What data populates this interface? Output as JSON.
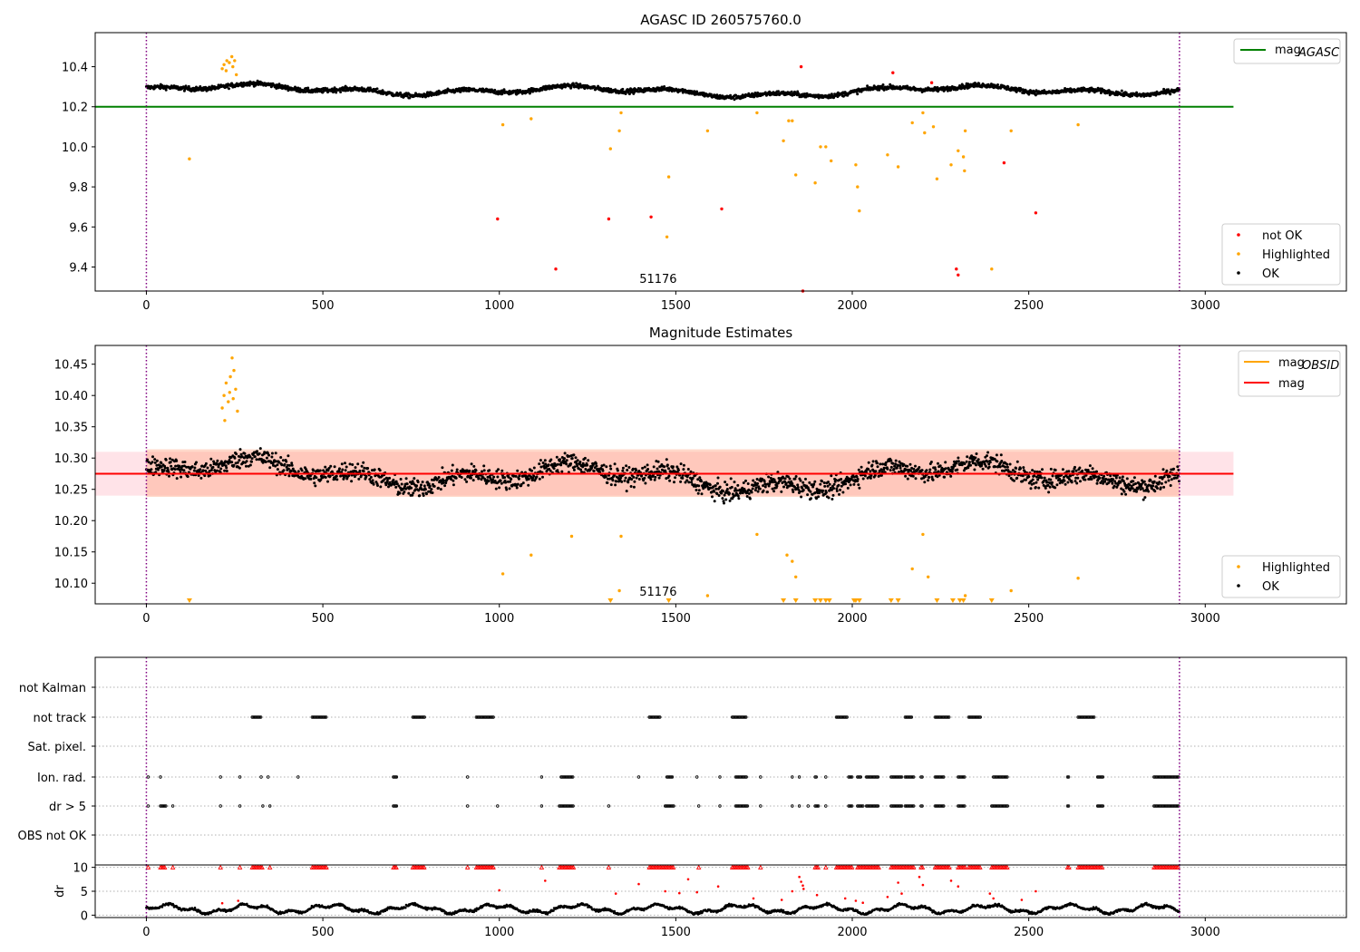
{
  "chart_data": [
    {
      "panel": "top",
      "type": "scatter",
      "title": "AGASC ID 260575760.0",
      "xlim": [
        -145,
        3400
      ],
      "ylim": [
        9.28,
        10.57
      ],
      "x_ticks": [
        0,
        500,
        1000,
        1500,
        2000,
        2500,
        3000
      ],
      "y_ticks": [
        9.4,
        9.6,
        9.8,
        10.0,
        10.2,
        10.4
      ],
      "y_tick_labels": [
        "9.4",
        "9.6",
        "9.8",
        "10.0",
        "10.2",
        "10.4"
      ],
      "annotation": "51176",
      "annotation_x": 1450,
      "vlines": [
        0,
        2927
      ],
      "vline_color": "#800080",
      "hline": {
        "name": "mag",
        "subscript": "AGASC",
        "y": 10.2,
        "x": [
          -145,
          3080
        ],
        "color": "#008000"
      },
      "legend_upper": [
        {
          "name": "mag",
          "subscript": "AGASC",
          "color": "#008000",
          "kind": "line"
        }
      ],
      "legend_lower": [
        {
          "name": "not OK",
          "color": "#ff0000",
          "kind": "dot"
        },
        {
          "name": "Highlighted",
          "color": "#ffa500",
          "kind": "dot"
        },
        {
          "name": "OK",
          "color": "#000000",
          "kind": "dot"
        }
      ],
      "ok_band": {
        "x": [
          0,
          2927
        ],
        "center": 10.28,
        "amplitude": 0.03,
        "noise": 0.022
      },
      "highlighted_points": [
        [
          122,
          9.94
        ],
        [
          1010,
          10.11
        ],
        [
          1090,
          10.14
        ],
        [
          1315,
          9.99
        ],
        [
          1345,
          10.17
        ],
        [
          1340,
          10.08
        ],
        [
          1480,
          9.85
        ],
        [
          1475,
          9.55
        ],
        [
          1590,
          10.08
        ],
        [
          1730,
          10.17
        ],
        [
          1805,
          10.03
        ],
        [
          1820,
          10.13
        ],
        [
          1830,
          10.13
        ],
        [
          1840,
          9.86
        ],
        [
          1895,
          9.82
        ],
        [
          1910,
          10.0
        ],
        [
          1925,
          10.0
        ],
        [
          1940,
          9.93
        ],
        [
          2010,
          9.91
        ],
        [
          2015,
          9.8
        ],
        [
          2020,
          9.68
        ],
        [
          2100,
          9.96
        ],
        [
          2130,
          9.9
        ],
        [
          2170,
          10.12
        ],
        [
          2200,
          10.17
        ],
        [
          2205,
          10.07
        ],
        [
          2230,
          10.1
        ],
        [
          2240,
          9.84
        ],
        [
          2280,
          9.91
        ],
        [
          2300,
          9.98
        ],
        [
          2315,
          9.95
        ],
        [
          2320,
          10.08
        ],
        [
          2318,
          9.88
        ],
        [
          2450,
          10.08
        ],
        [
          2395,
          9.39
        ],
        [
          2640,
          10.11
        ],
        [
          215,
          10.39
        ],
        [
          220,
          10.41
        ],
        [
          228,
          10.43
        ],
        [
          235,
          10.42
        ],
        [
          242,
          10.45
        ],
        [
          250,
          10.43
        ],
        [
          226,
          10.38
        ],
        [
          245,
          10.4
        ],
        [
          255,
          10.36
        ]
      ],
      "notok_points": [
        [
          995,
          9.64
        ],
        [
          1160,
          9.39
        ],
        [
          1310,
          9.64
        ],
        [
          1430,
          9.65
        ],
        [
          1630,
          9.69
        ],
        [
          1855,
          10.4
        ],
        [
          2115,
          10.37
        ],
        [
          2225,
          10.32
        ],
        [
          2295,
          9.39
        ],
        [
          2300,
          9.36
        ],
        [
          2430,
          9.92
        ],
        [
          2520,
          9.67
        ],
        [
          1860,
          9.28
        ]
      ]
    },
    {
      "panel": "middle",
      "type": "scatter",
      "title": "Magnitude Estimates",
      "xlim": [
        -145,
        3400
      ],
      "ylim": [
        10.067,
        10.48
      ],
      "x_ticks": [
        0,
        500,
        1000,
        1500,
        2000,
        2500,
        3000
      ],
      "y_ticks": [
        10.1,
        10.15,
        10.2,
        10.25,
        10.3,
        10.35,
        10.4,
        10.45
      ],
      "y_tick_labels": [
        "10.10",
        "10.15",
        "10.20",
        "10.25",
        "10.30",
        "10.35",
        "10.40",
        "10.45"
      ],
      "annotation": "51176",
      "annotation_x": 1450,
      "vlines": [
        0,
        2927
      ],
      "mag_line": {
        "name": "mag",
        "y": 10.275,
        "x": [
          -145,
          3080
        ],
        "color": "#ff0000"
      },
      "band_outer": {
        "y": [
          10.24,
          10.31
        ],
        "x": [
          -145,
          3080
        ],
        "color": "#ffc0cb"
      },
      "band_inner": {
        "y": [
          10.238,
          10.314
        ],
        "x": [
          0,
          2927
        ],
        "color": "#ffa07a"
      },
      "legend_upper": [
        {
          "name": "mag",
          "subscript": "OBSID",
          "color": "#ffa500",
          "kind": "line"
        },
        {
          "name": "mag",
          "color": "#ff0000",
          "kind": "line"
        }
      ],
      "legend_lower": [
        {
          "name": "Highlighted",
          "color": "#ffa500",
          "kind": "dot"
        },
        {
          "name": "OK",
          "color": "#000000",
          "kind": "dot"
        }
      ],
      "ok_band": {
        "x": [
          0,
          2927
        ],
        "center": 10.272,
        "amplitude": 0.025,
        "noise": 0.03
      },
      "highlighted_points": [
        [
          1010,
          10.115
        ],
        [
          1090,
          10.145
        ],
        [
          1205,
          10.175
        ],
        [
          1345,
          10.175
        ],
        [
          1340,
          10.088
        ],
        [
          1590,
          10.08
        ],
        [
          1730,
          10.178
        ],
        [
          1815,
          10.145
        ],
        [
          1830,
          10.135
        ],
        [
          1840,
          10.11
        ],
        [
          2170,
          10.123
        ],
        [
          2200,
          10.178
        ],
        [
          2215,
          10.11
        ],
        [
          2320,
          10.08
        ],
        [
          2450,
          10.088
        ],
        [
          2640,
          10.108
        ],
        [
          215,
          10.38
        ],
        [
          220,
          10.4
        ],
        [
          226,
          10.42
        ],
        [
          232,
          10.39
        ],
        [
          238,
          10.43
        ],
        [
          243,
          10.46
        ],
        [
          248,
          10.44
        ],
        [
          253,
          10.41
        ],
        [
          258,
          10.375
        ],
        [
          222,
          10.36
        ],
        [
          236,
          10.405
        ],
        [
          246,
          10.395
        ]
      ],
      "clipped_markers_x": [
        122,
        1315,
        1480,
        1805,
        1840,
        1895,
        1910,
        1925,
        1935,
        2005,
        2010,
        2020,
        2110,
        2130,
        2240,
        2285,
        2305,
        2315,
        2395
      ]
    },
    {
      "panel": "flags",
      "type": "scatter",
      "xlim": [
        -145,
        3400
      ],
      "x_ticks": [
        0,
        500,
        1000,
        1500,
        2000,
        2500,
        3000
      ],
      "vlines": [
        0,
        2927
      ],
      "categories": [
        "not Kalman",
        "not track",
        "Sat. pixel.",
        "Ion. rad.",
        "dr > 5",
        "OBS not OK"
      ],
      "flag_points": {
        "not track": [
          [
            300,
            325
          ],
          [
            470,
            510
          ],
          [
            755,
            790
          ],
          [
            935,
            985
          ],
          [
            1425,
            1455
          ],
          [
            1660,
            1700
          ],
          [
            1955,
            1985
          ],
          [
            2150,
            2170
          ],
          [
            2235,
            2275
          ],
          [
            2330,
            2365
          ],
          [
            2640,
            2685
          ]
        ],
        "Ion. rad.": [
          [
            5,
            5
          ],
          [
            40,
            40
          ],
          [
            210,
            210
          ],
          [
            265,
            265
          ],
          [
            325,
            325
          ],
          [
            345,
            345
          ],
          [
            430,
            430
          ],
          [
            700,
            710
          ],
          [
            910,
            910
          ],
          [
            1120,
            1120
          ],
          [
            1175,
            1210
          ],
          [
            1395,
            1395
          ],
          [
            1475,
            1490
          ],
          [
            1560,
            1560
          ],
          [
            1625,
            1625
          ],
          [
            1670,
            1700
          ],
          [
            1740,
            1740
          ],
          [
            1830,
            1830
          ],
          [
            1850,
            1850
          ],
          [
            1895,
            1900
          ],
          [
            1925,
            1925
          ],
          [
            1990,
            2000
          ],
          [
            2015,
            2025
          ],
          [
            2040,
            2075
          ],
          [
            2110,
            2140
          ],
          [
            2150,
            2175
          ],
          [
            2195,
            2200
          ],
          [
            2235,
            2260
          ],
          [
            2300,
            2320
          ],
          [
            2400,
            2440
          ],
          [
            2610,
            2615
          ],
          [
            2695,
            2710
          ],
          [
            2855,
            2925
          ]
        ],
        "dr > 5": [
          [
            5,
            5
          ],
          [
            40,
            55
          ],
          [
            75,
            75
          ],
          [
            210,
            210
          ],
          [
            265,
            265
          ],
          [
            330,
            330
          ],
          [
            350,
            350
          ],
          [
            700,
            710
          ],
          [
            910,
            910
          ],
          [
            995,
            995
          ],
          [
            1120,
            1120
          ],
          [
            1170,
            1210
          ],
          [
            1310,
            1310
          ],
          [
            1470,
            1495
          ],
          [
            1565,
            1565
          ],
          [
            1625,
            1625
          ],
          [
            1670,
            1705
          ],
          [
            1740,
            1740
          ],
          [
            1830,
            1830
          ],
          [
            1850,
            1850
          ],
          [
            1875,
            1875
          ],
          [
            1895,
            1905
          ],
          [
            1925,
            1925
          ],
          [
            1990,
            2000
          ],
          [
            2015,
            2030
          ],
          [
            2040,
            2075
          ],
          [
            2110,
            2140
          ],
          [
            2150,
            2175
          ],
          [
            2195,
            2200
          ],
          [
            2235,
            2260
          ],
          [
            2300,
            2320
          ],
          [
            2395,
            2440
          ],
          [
            2610,
            2615
          ],
          [
            2695,
            2710
          ],
          [
            2855,
            2925
          ]
        ]
      }
    },
    {
      "panel": "dr",
      "type": "scatter",
      "ylabel": "dr",
      "xlim": [
        -145,
        3400
      ],
      "ylim": [
        -0.5,
        10.5
      ],
      "y_ticks": [
        0,
        5,
        10
      ],
      "x_ticks": [
        0,
        500,
        1000,
        1500,
        2000,
        2500,
        3000
      ],
      "x_tick_labels": [
        "0",
        "500",
        "1000",
        "1500",
        "2000",
        "2500",
        "3000"
      ],
      "vlines": [
        0,
        2927
      ],
      "clip_value": 10,
      "clipped_x": [
        [
          5,
          5
        ],
        [
          40,
          55
        ],
        [
          75,
          75
        ],
        [
          210,
          210
        ],
        [
          265,
          265
        ],
        [
          300,
          330
        ],
        [
          350,
          350
        ],
        [
          470,
          510
        ],
        [
          700,
          710
        ],
        [
          755,
          790
        ],
        [
          910,
          910
        ],
        [
          935,
          985
        ],
        [
          1120,
          1120
        ],
        [
          1170,
          1210
        ],
        [
          1310,
          1310
        ],
        [
          1425,
          1495
        ],
        [
          1565,
          1565
        ],
        [
          1660,
          1705
        ],
        [
          1740,
          1740
        ],
        [
          1895,
          1905
        ],
        [
          1925,
          1925
        ],
        [
          1955,
          2000
        ],
        [
          2015,
          2075
        ],
        [
          2110,
          2175
        ],
        [
          2195,
          2200
        ],
        [
          2235,
          2275
        ],
        [
          2300,
          2320
        ],
        [
          2330,
          2365
        ],
        [
          2395,
          2440
        ],
        [
          2610,
          2615
        ],
        [
          2640,
          2710
        ],
        [
          2855,
          2925
        ]
      ],
      "red_points": [
        [
          1000,
          5.2
        ],
        [
          1130,
          7.2
        ],
        [
          1330,
          4.5
        ],
        [
          1395,
          6.5
        ],
        [
          1470,
          5.0
        ],
        [
          1510,
          4.6
        ],
        [
          1535,
          7.5
        ],
        [
          1560,
          4.8
        ],
        [
          1620,
          6.0
        ],
        [
          1720,
          3.5
        ],
        [
          1800,
          3.2
        ],
        [
          1830,
          5.0
        ],
        [
          1850,
          8.0
        ],
        [
          1855,
          7.0
        ],
        [
          1860,
          6.2
        ],
        [
          1862,
          5.5
        ],
        [
          1900,
          4.2
        ],
        [
          1980,
          3.5
        ],
        [
          2010,
          3.0
        ],
        [
          2030,
          2.6
        ],
        [
          2100,
          3.8
        ],
        [
          2130,
          6.8
        ],
        [
          2140,
          4.5
        ],
        [
          2190,
          8.0
        ],
        [
          2200,
          6.3
        ],
        [
          2280,
          7.2
        ],
        [
          2300,
          6.0
        ],
        [
          2390,
          4.5
        ],
        [
          2400,
          3.5
        ],
        [
          2480,
          3.2
        ],
        [
          2520,
          5.0
        ],
        [
          260,
          3.0
        ],
        [
          215,
          2.5
        ]
      ]
    }
  ]
}
